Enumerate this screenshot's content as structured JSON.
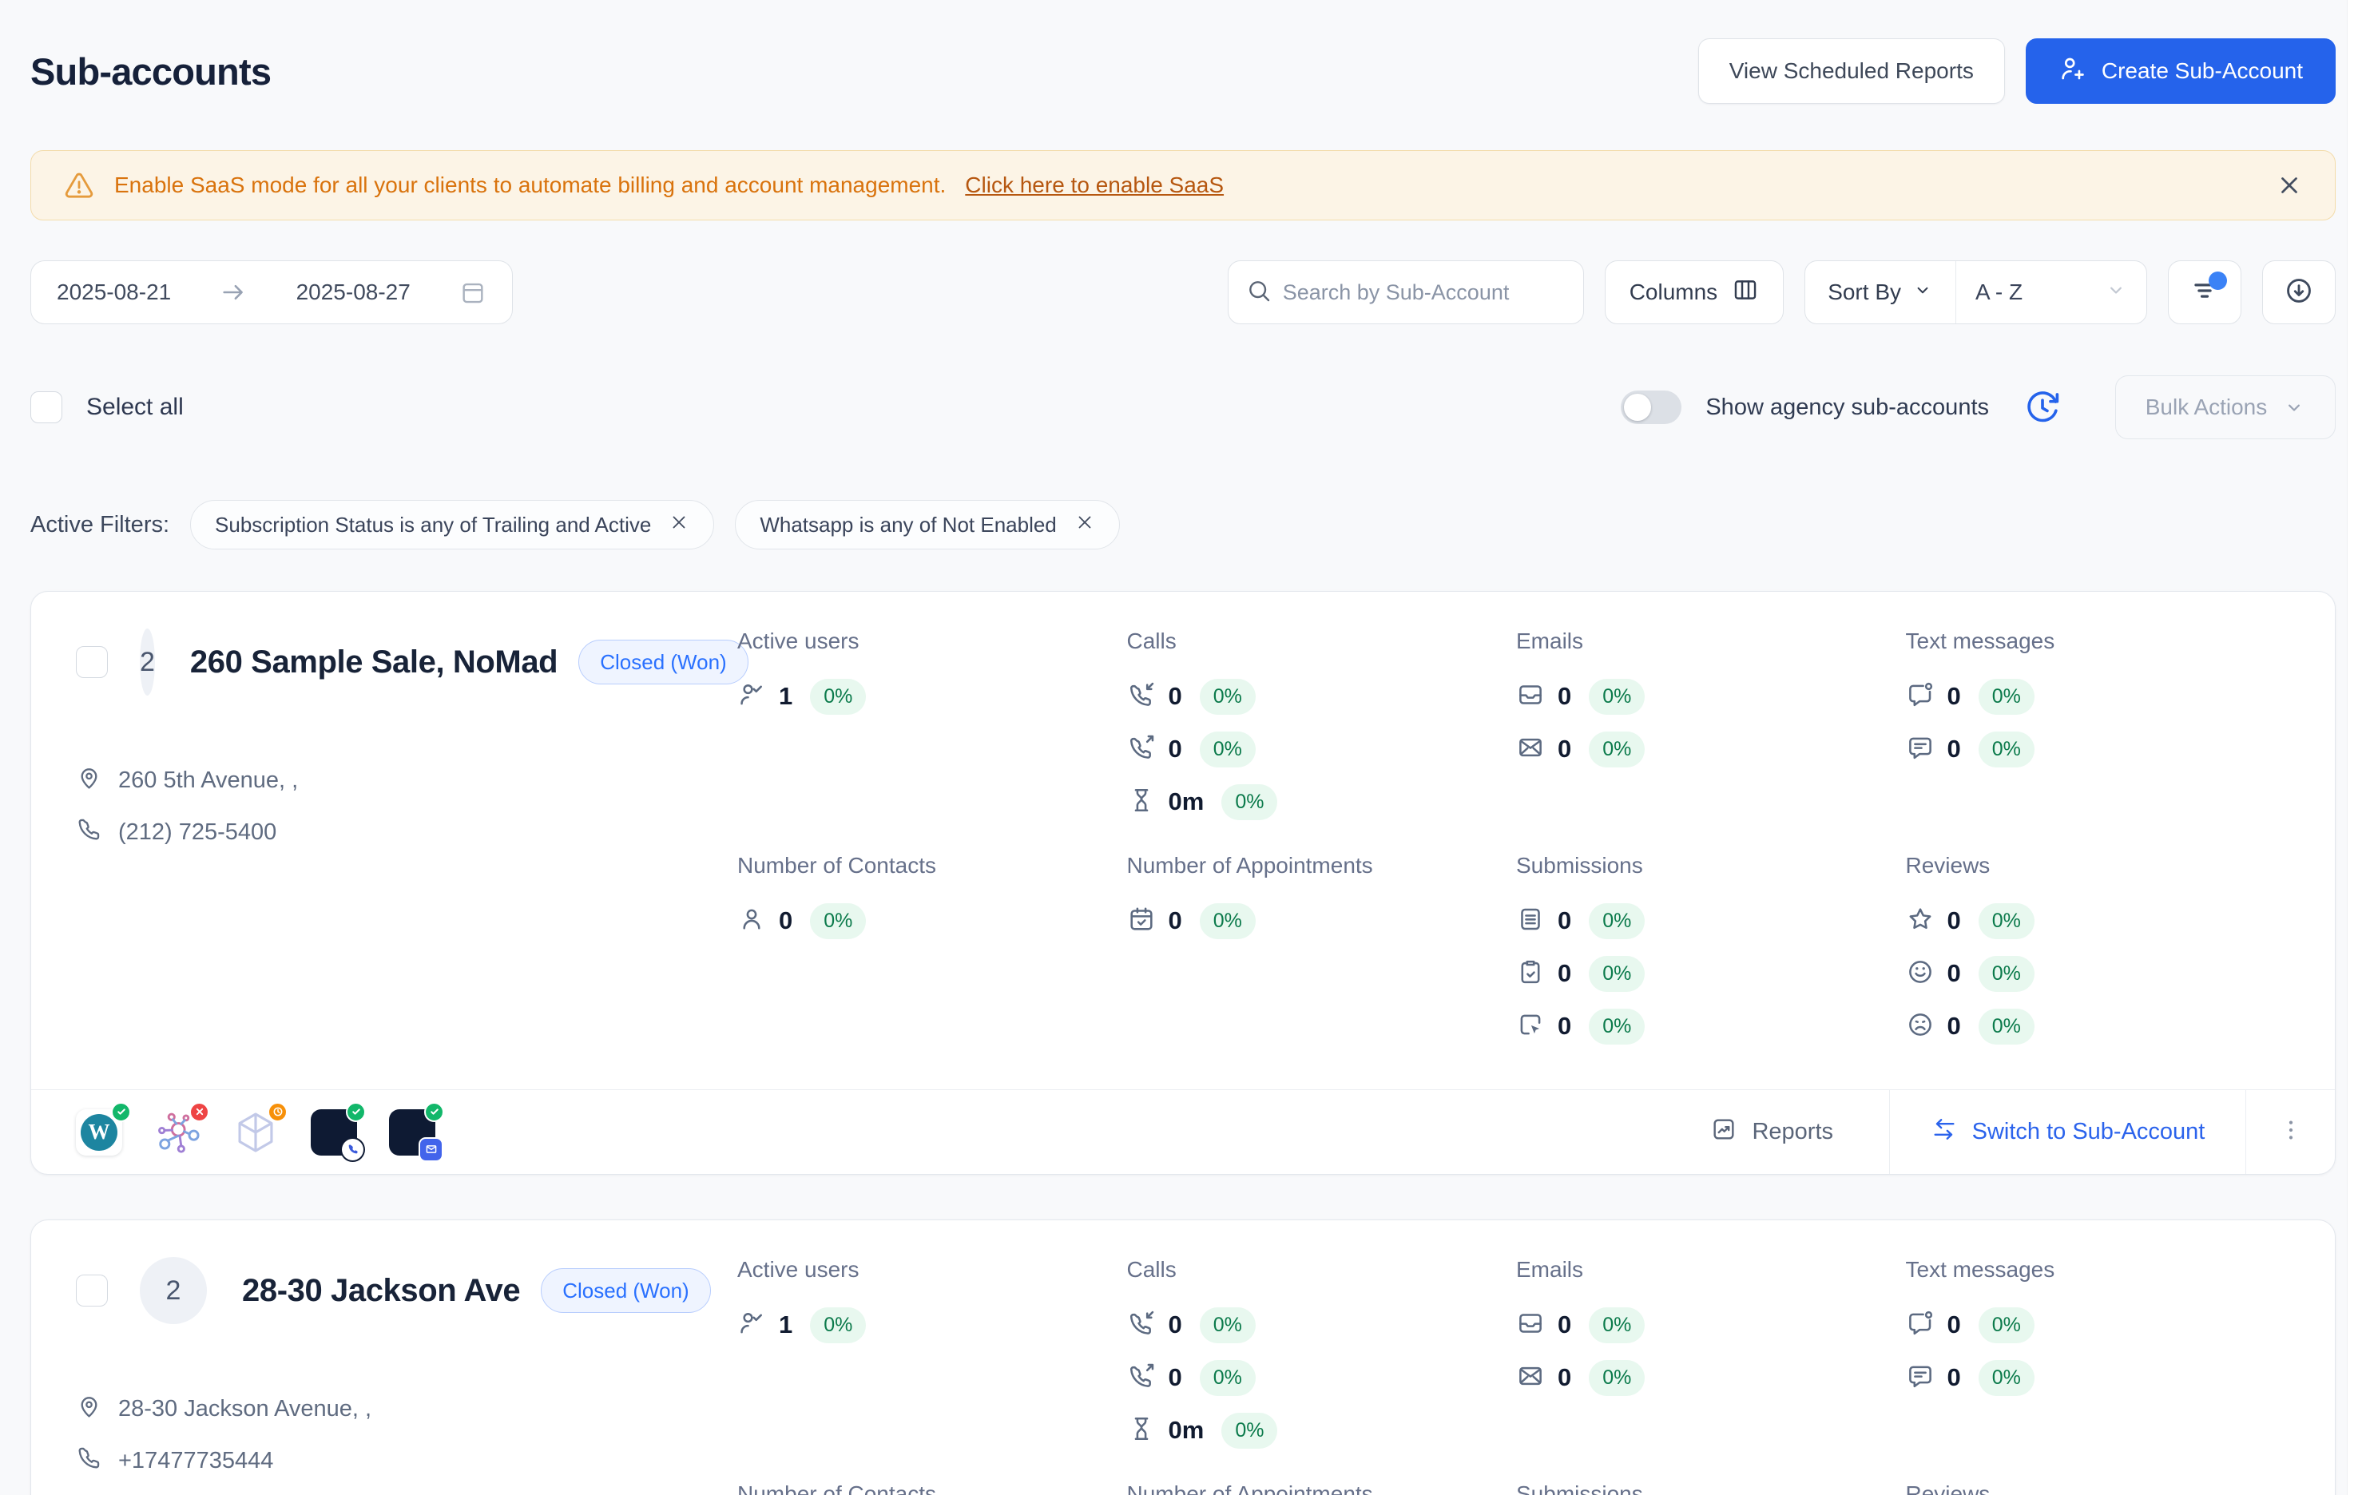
{
  "page": {
    "title": "Sub-accounts"
  },
  "header": {
    "view_scheduled_reports": "View Scheduled Reports",
    "create_sub_account": "Create Sub-Account"
  },
  "banner": {
    "message": "Enable SaaS mode for all your clients to automate billing and account management.",
    "link": "Click here to enable SaaS"
  },
  "toolbar": {
    "date_from": "2025-08-21",
    "date_to": "2025-08-27",
    "search_placeholder": "Search by Sub-Account",
    "columns_label": "Columns",
    "sort_by_label": "Sort By",
    "sort_value": "A - Z"
  },
  "controls": {
    "select_all": "Select all",
    "show_agency_label": "Show agency sub-accounts",
    "bulk_actions_label": "Bulk Actions"
  },
  "filters": {
    "label": "Active Filters:",
    "chips": [
      "Subscription Status is any of Trailing and Active",
      "Whatsapp is any of Not Enabled"
    ]
  },
  "colors": {
    "accent_blue": "#2563eb",
    "status_badge_text": "#2970ff",
    "positive_green": "#0b7a4b",
    "warning_orange": "#d9730d"
  },
  "accounts": [
    {
      "avatar": "2",
      "name": "260 Sample Sale, NoMad",
      "status": "Closed (Won)",
      "address": "260 5th Avenue, ,",
      "phone": "(212) 725-5400",
      "stats_rows": [
        [
          {
            "label": "Active users",
            "items": [
              {
                "icon": "user-check-icon",
                "value": "1",
                "pct": "0%"
              }
            ]
          },
          {
            "label": "Calls",
            "items": [
              {
                "icon": "phone-incoming-icon",
                "value": "0",
                "pct": "0%"
              },
              {
                "icon": "phone-outgoing-icon",
                "value": "0",
                "pct": "0%"
              },
              {
                "icon": "hourglass-icon",
                "value": "0m",
                "pct": "0%"
              }
            ]
          },
          {
            "label": "Emails",
            "items": [
              {
                "icon": "mail-tray-icon",
                "value": "0",
                "pct": "0%"
              },
              {
                "icon": "mail-icon",
                "value": "0",
                "pct": "0%"
              }
            ]
          },
          {
            "label": "Text messages",
            "items": [
              {
                "icon": "chat-dot-icon",
                "value": "0",
                "pct": "0%"
              },
              {
                "icon": "chat-lines-icon",
                "value": "0",
                "pct": "0%"
              }
            ]
          }
        ],
        [
          {
            "label": "Number of Contacts",
            "items": [
              {
                "icon": "user-icon",
                "value": "0",
                "pct": "0%"
              }
            ]
          },
          {
            "label": "Number of Appointments",
            "items": [
              {
                "icon": "calendar-check-icon",
                "value": "0",
                "pct": "0%"
              }
            ]
          },
          {
            "label": "Submissions",
            "items": [
              {
                "icon": "doc-lines-icon",
                "value": "0",
                "pct": "0%"
              },
              {
                "icon": "clipboard-check-icon",
                "value": "0",
                "pct": "0%"
              },
              {
                "icon": "form-cursor-icon",
                "value": "0",
                "pct": "0%"
              }
            ]
          },
          {
            "label": "Reviews",
            "items": [
              {
                "icon": "star-icon",
                "value": "0",
                "pct": "0%"
              },
              {
                "icon": "smile-icon",
                "value": "0",
                "pct": "0%"
              },
              {
                "icon": "frown-icon",
                "value": "0",
                "pct": "0%"
              }
            ]
          }
        ]
      ],
      "integrations": [
        {
          "name": "wordpress",
          "status": "connected"
        },
        {
          "name": "network",
          "status": "error"
        },
        {
          "name": "cube",
          "status": "pending"
        },
        {
          "name": "phone-app",
          "status": "connected"
        },
        {
          "name": "email-app",
          "status": "connected"
        }
      ],
      "footer": {
        "reports": "Reports",
        "switch": "Switch to Sub-Account"
      }
    },
    {
      "avatar": "2",
      "name": "28-30 Jackson Ave",
      "status": "Closed (Won)",
      "address": "28-30 Jackson Avenue, ,",
      "phone": "+17477735444",
      "stats_rows": [
        [
          {
            "label": "Active users",
            "items": [
              {
                "icon": "user-check-icon",
                "value": "1",
                "pct": "0%"
              }
            ]
          },
          {
            "label": "Calls",
            "items": [
              {
                "icon": "phone-incoming-icon",
                "value": "0",
                "pct": "0%"
              },
              {
                "icon": "phone-outgoing-icon",
                "value": "0",
                "pct": "0%"
              },
              {
                "icon": "hourglass-icon",
                "value": "0m",
                "pct": "0%"
              }
            ]
          },
          {
            "label": "Emails",
            "items": [
              {
                "icon": "mail-tray-icon",
                "value": "0",
                "pct": "0%"
              },
              {
                "icon": "mail-icon",
                "value": "0",
                "pct": "0%"
              }
            ]
          },
          {
            "label": "Text messages",
            "items": [
              {
                "icon": "chat-dot-icon",
                "value": "0",
                "pct": "0%"
              },
              {
                "icon": "chat-lines-icon",
                "value": "0",
                "pct": "0%"
              }
            ]
          }
        ],
        [
          {
            "label": "Number of Contacts",
            "items": []
          },
          {
            "label": "Number of Appointments",
            "items": []
          },
          {
            "label": "Submissions",
            "items": []
          },
          {
            "label": "Reviews",
            "items": []
          }
        ]
      ],
      "integrations": [],
      "footer": null
    }
  ]
}
